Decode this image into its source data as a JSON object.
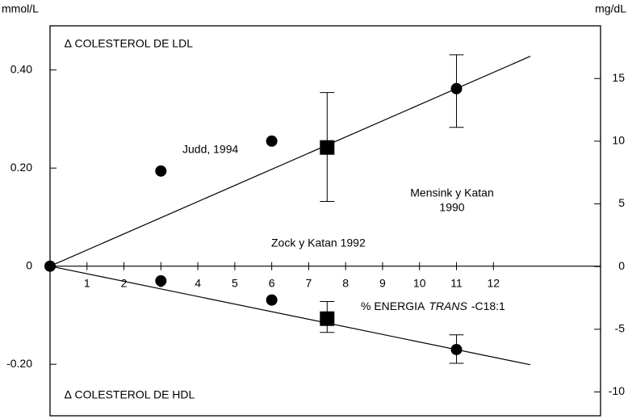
{
  "chart_data": {
    "type": "scatter",
    "ylabel": "mmol/L",
    "y2label": "mg/dL",
    "xlabel": {
      "before": "% ENERGIA",
      "italic": "TRANS",
      "after": "-C18:1"
    },
    "xlim": [
      0,
      14.9
    ],
    "ylim": [
      -0.305,
      0.49
    ],
    "y2lim": [
      -11.9,
      19.2
    ],
    "xticks": [
      1,
      2,
      3,
      4,
      5,
      6,
      7,
      8,
      9,
      10,
      11,
      12
    ],
    "yticks": [
      {
        "value": -0.2,
        "label": "-0.20"
      },
      0,
      {
        "value": 0.2,
        "label": "0.20"
      },
      {
        "value": 0.4,
        "label": "0.40"
      }
    ],
    "y2ticks": [
      -10,
      -5,
      0,
      5,
      10,
      15
    ],
    "series": [
      {
        "marker": "circle",
        "color": "#000000",
        "x": [
          0,
          3,
          6,
          11
        ],
        "values": [
          0,
          0.194,
          0.255,
          0.362
        ]
      },
      {
        "marker": "square",
        "color": "#000000",
        "x": [
          7.5
        ],
        "values": [
          0.242
        ]
      },
      {
        "marker": "circle",
        "color": "#000000",
        "x": [
          3,
          6,
          11
        ],
        "values": [
          -0.03,
          -0.069,
          -0.17
        ]
      },
      {
        "marker": "square",
        "color": "#000000",
        "x": [
          7.5
        ],
        "values": [
          -0.107
        ]
      }
    ],
    "error_bars": [
      {
        "x": 7.5,
        "low": 0.132,
        "high": 0.354
      },
      {
        "x": 11,
        "low": 0.283,
        "high": 0.431
      },
      {
        "x": 7.5,
        "low": -0.135,
        "high": -0.072
      },
      {
        "x": 11,
        "low": -0.198,
        "high": -0.14
      }
    ],
    "fits": [
      {
        "x": [
          0,
          13
        ],
        "values": [
          0,
          0.428
        ]
      },
      {
        "x": [
          0,
          13
        ],
        "values": [
          0,
          -0.201
        ]
      }
    ],
    "annotations": [
      "∆ COLESTEROL DE LDL",
      "∆ COLESTEROL DE HDL",
      "Judd, 1994",
      "Zock y Katan 1992",
      [
        "Mensink y Katan",
        "1990"
      ]
    ]
  }
}
